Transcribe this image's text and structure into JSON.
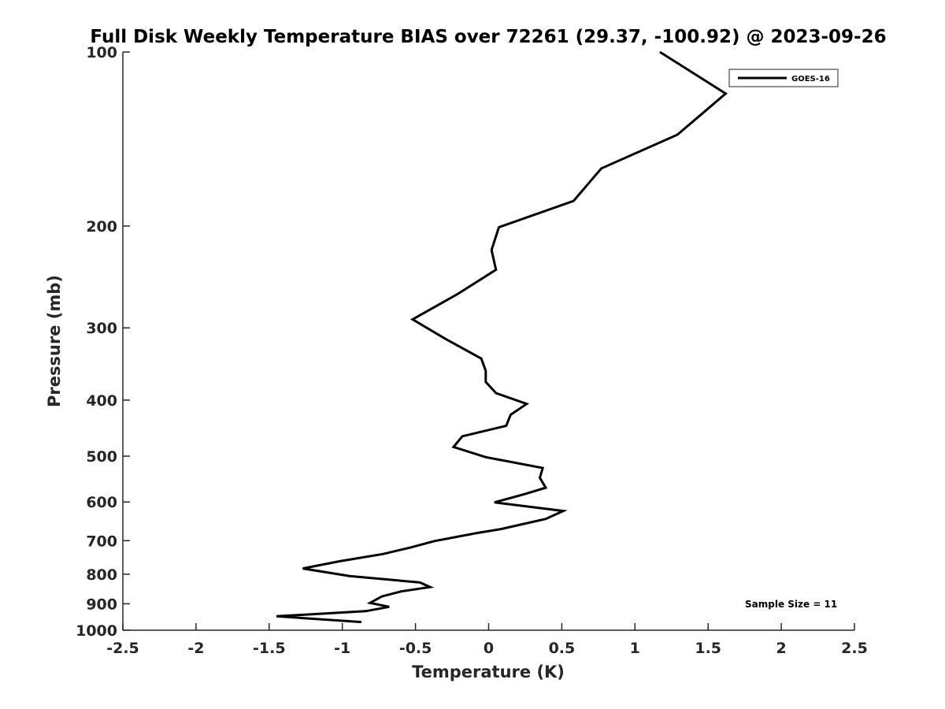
{
  "chart_data": {
    "type": "line",
    "title": "Full Disk Weekly Temperature BIAS over 72261 (29.37, -100.92) @ 2023-09-26",
    "xlabel": "Temperature (K)",
    "ylabel": "Pressure (mb)",
    "xlim": [
      -2.5,
      2.5
    ],
    "ylim": [
      100,
      1000
    ],
    "yscale": "log",
    "y_reversed": true,
    "grid": false,
    "legend_position": "top-right",
    "xticks": [
      -2.5,
      -2,
      -1.5,
      -1,
      -0.5,
      0,
      0.5,
      1,
      1.5,
      2,
      2.5
    ],
    "xtick_labels": [
      "-2.5",
      "-2",
      "-1.5",
      "-1",
      "-0.5",
      "0",
      "0.5",
      "1",
      "1.5",
      "2",
      "2.5"
    ],
    "yticks": [
      100,
      200,
      300,
      400,
      500,
      600,
      700,
      800,
      900,
      1000
    ],
    "ytick_labels": [
      "100",
      "200",
      "300",
      "400",
      "500",
      "600",
      "700",
      "800",
      "900",
      "1000"
    ],
    "annotation": "Sample Size = 11",
    "series": [
      {
        "name": "GOES-16",
        "color": "#000000",
        "points": [
          {
            "x": 1.17,
            "y": 100
          },
          {
            "x": 1.62,
            "y": 118
          },
          {
            "x": 1.29,
            "y": 139
          },
          {
            "x": 0.77,
            "y": 159
          },
          {
            "x": 0.58,
            "y": 181
          },
          {
            "x": 0.07,
            "y": 201
          },
          {
            "x": 0.02,
            "y": 220
          },
          {
            "x": 0.05,
            "y": 238
          },
          {
            "x": -0.21,
            "y": 262
          },
          {
            "x": -0.52,
            "y": 290
          },
          {
            "x": -0.3,
            "y": 313
          },
          {
            "x": -0.05,
            "y": 339
          },
          {
            "x": -0.02,
            "y": 356
          },
          {
            "x": -0.02,
            "y": 372
          },
          {
            "x": 0.05,
            "y": 389
          },
          {
            "x": 0.26,
            "y": 406
          },
          {
            "x": 0.15,
            "y": 424
          },
          {
            "x": 0.12,
            "y": 443
          },
          {
            "x": -0.18,
            "y": 462
          },
          {
            "x": -0.24,
            "y": 482
          },
          {
            "x": -0.02,
            "y": 502
          },
          {
            "x": 0.37,
            "y": 524
          },
          {
            "x": 0.35,
            "y": 545
          },
          {
            "x": 0.39,
            "y": 567
          },
          {
            "x": 0.24,
            "y": 582
          },
          {
            "x": 0.04,
            "y": 601
          },
          {
            "x": 0.51,
            "y": 622
          },
          {
            "x": 0.39,
            "y": 642
          },
          {
            "x": 0.09,
            "y": 668
          },
          {
            "x": -0.08,
            "y": 679
          },
          {
            "x": -0.37,
            "y": 701
          },
          {
            "x": -0.53,
            "y": 719
          },
          {
            "x": -0.72,
            "y": 738
          },
          {
            "x": -1.02,
            "y": 760
          },
          {
            "x": -1.27,
            "y": 782
          },
          {
            "x": -0.95,
            "y": 806
          },
          {
            "x": -0.47,
            "y": 827
          },
          {
            "x": -0.4,
            "y": 842
          },
          {
            "x": -0.6,
            "y": 857
          },
          {
            "x": -0.73,
            "y": 874
          },
          {
            "x": -0.81,
            "y": 897
          },
          {
            "x": -0.68,
            "y": 911
          },
          {
            "x": -0.84,
            "y": 927
          },
          {
            "x": -1.45,
            "y": 946
          },
          {
            "x": -0.87,
            "y": 968
          }
        ]
      }
    ]
  }
}
